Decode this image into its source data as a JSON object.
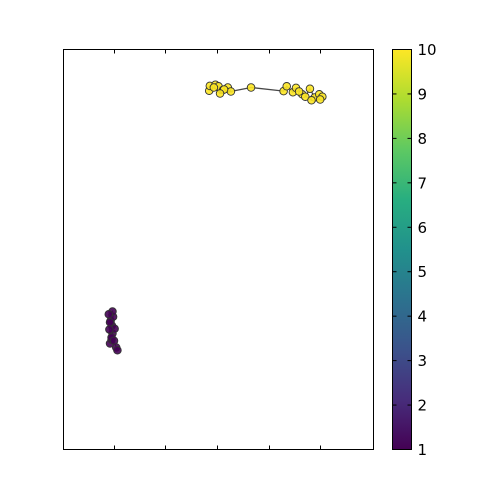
{
  "chart_data": {
    "type": "scatter",
    "title": "",
    "xlabel": "",
    "ylabel": "",
    "xlim": [
      0,
      10
    ],
    "ylim": [
      0,
      10
    ],
    "grid": false,
    "legend": "none",
    "colormap": "viridis",
    "colorbar": {
      "min": 1,
      "max": 10,
      "ticks": [
        "1",
        "2",
        "3",
        "4",
        "5",
        "6",
        "7",
        "8",
        "9",
        "10"
      ]
    },
    "series": [
      {
        "color_value": 1,
        "color": "#440154",
        "edge_color": "#333333",
        "connected": true,
        "points": [
          {
            "x": 1.5,
            "y": 2.65
          },
          {
            "x": 1.55,
            "y": 2.75
          },
          {
            "x": 1.58,
            "y": 2.9
          },
          {
            "x": 1.56,
            "y": 3.1
          },
          {
            "x": 1.65,
            "y": 3.02
          },
          {
            "x": 1.52,
            "y": 3.22
          },
          {
            "x": 1.6,
            "y": 3.32
          },
          {
            "x": 1.58,
            "y": 3.45
          },
          {
            "x": 1.46,
            "y": 3.38
          },
          {
            "x": 1.5,
            "y": 3.18
          },
          {
            "x": 1.48,
            "y": 3.0
          },
          {
            "x": 1.55,
            "y": 2.8
          },
          {
            "x": 1.63,
            "y": 2.72
          },
          {
            "x": 1.7,
            "y": 2.55
          },
          {
            "x": 1.74,
            "y": 2.48
          }
        ]
      },
      {
        "color_value": 10,
        "color": "#fde725",
        "edge_color": "#333333",
        "connected": true,
        "points": [
          {
            "x": 4.7,
            "y": 8.97
          },
          {
            "x": 4.72,
            "y": 9.09
          },
          {
            "x": 4.9,
            "y": 9.12
          },
          {
            "x": 5.0,
            "y": 9.08
          },
          {
            "x": 5.15,
            "y": 8.99
          },
          {
            "x": 5.3,
            "y": 9.05
          },
          {
            "x": 5.4,
            "y": 8.95
          },
          {
            "x": 5.18,
            "y": 9.0
          },
          {
            "x": 4.85,
            "y": 9.05
          },
          {
            "x": 5.05,
            "y": 8.9
          },
          {
            "x": 6.05,
            "y": 9.05
          },
          {
            "x": 7.1,
            "y": 8.96
          },
          {
            "x": 7.2,
            "y": 9.08
          },
          {
            "x": 7.4,
            "y": 8.93
          },
          {
            "x": 7.5,
            "y": 9.04
          },
          {
            "x": 7.7,
            "y": 8.88
          },
          {
            "x": 7.8,
            "y": 8.82
          },
          {
            "x": 7.95,
            "y": 9.02
          },
          {
            "x": 8.1,
            "y": 8.8
          },
          {
            "x": 8.25,
            "y": 8.88
          },
          {
            "x": 8.35,
            "y": 8.82
          },
          {
            "x": 8.28,
            "y": 8.75
          },
          {
            "x": 8.0,
            "y": 8.73
          },
          {
            "x": 7.6,
            "y": 8.95
          }
        ]
      }
    ]
  }
}
